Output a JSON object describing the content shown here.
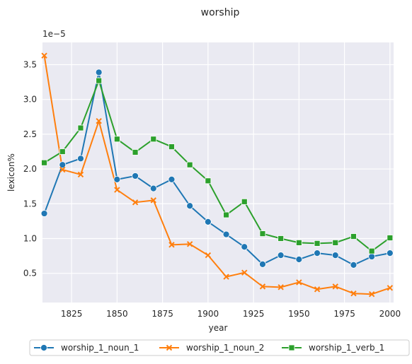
{
  "chart_data": {
    "type": "line",
    "title": "worship",
    "xlabel": "year",
    "ylabel": "lexicon%",
    "y_multiplier_label": "1e−5",
    "xlim": [
      1809,
      2002
    ],
    "ylim": [
      0.08,
      3.82
    ],
    "x_ticks": [
      1825,
      1850,
      1875,
      1900,
      1925,
      1950,
      1975,
      2000
    ],
    "y_ticks": [
      0.5,
      1.0,
      1.5,
      2.0,
      2.5,
      3.0,
      3.5
    ],
    "y_tick_labels": [
      "0.5",
      "1.0",
      "1.5",
      "2.0",
      "2.5",
      "3.0",
      "3.5"
    ],
    "grid": true,
    "legend_position": "bottom-center",
    "x": [
      1810,
      1820,
      1830,
      1840,
      1850,
      1860,
      1870,
      1880,
      1890,
      1900,
      1910,
      1920,
      1930,
      1940,
      1950,
      1960,
      1970,
      1980,
      1990,
      2000
    ],
    "series": [
      {
        "name": "worship_1_noun_1",
        "color": "#1f77b4",
        "marker": "circle",
        "values": [
          1.36,
          2.06,
          2.15,
          3.39,
          1.85,
          1.9,
          1.72,
          1.85,
          1.47,
          1.24,
          1.06,
          0.88,
          0.63,
          0.76,
          0.7,
          0.79,
          0.76,
          0.62,
          0.74,
          0.79
        ]
      },
      {
        "name": "worship_1_noun_2",
        "color": "#ff7f0e",
        "marker": "x",
        "values": [
          3.63,
          1.99,
          1.92,
          2.69,
          1.7,
          1.52,
          1.55,
          0.91,
          0.92,
          0.76,
          0.45,
          0.51,
          0.31,
          0.3,
          0.37,
          0.27,
          0.31,
          0.21,
          0.2,
          0.29
        ]
      },
      {
        "name": "worship_1_verb_1",
        "color": "#2ca02c",
        "marker": "square",
        "values": [
          2.09,
          2.25,
          2.59,
          3.27,
          2.43,
          2.24,
          2.43,
          2.32,
          2.06,
          1.83,
          1.34,
          1.53,
          1.07,
          1.0,
          0.94,
          0.93,
          0.94,
          1.03,
          0.82,
          1.01
        ]
      }
    ]
  }
}
